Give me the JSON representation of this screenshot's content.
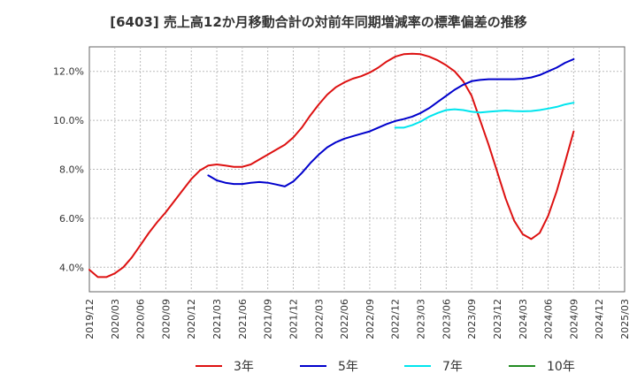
{
  "chart_data": {
    "type": "line",
    "title": "[6403]  売上高12か月移動合計の対前年同期増減率の標準偏差の推移",
    "xlabel": "",
    "ylabel": "",
    "ylim": [
      3.0,
      13.0
    ],
    "yticks": [
      4.0,
      6.0,
      8.0,
      10.0,
      12.0
    ],
    "ytick_labels": [
      "4.0%",
      "6.0%",
      "8.0%",
      "10.0%",
      "12.0%"
    ],
    "xticks": [
      "2019/12",
      "2020/03",
      "2020/06",
      "2020/09",
      "2020/12",
      "2021/03",
      "2021/06",
      "2021/09",
      "2021/12",
      "2022/03",
      "2022/06",
      "2022/09",
      "2022/12",
      "2023/03",
      "2023/06",
      "2023/09",
      "2023/12",
      "2024/03",
      "2024/06",
      "2024/09",
      "2024/12",
      "2025/03"
    ],
    "grid": true,
    "legend_position": "bottom",
    "series": [
      {
        "name": "3年",
        "color": "#dd1111",
        "points": [
          [
            "2019/12",
            3.9
          ],
          [
            "2020/01",
            3.6
          ],
          [
            "2020/02",
            3.6
          ],
          [
            "2020/03",
            3.75
          ],
          [
            "2020/04",
            4.0
          ],
          [
            "2020/05",
            4.4
          ],
          [
            "2020/06",
            4.9
          ],
          [
            "2020/07",
            5.4
          ],
          [
            "2020/08",
            5.85
          ],
          [
            "2020/09",
            6.25
          ],
          [
            "2020/10",
            6.7
          ],
          [
            "2020/11",
            7.15
          ],
          [
            "2020/12",
            7.6
          ],
          [
            "2021/01",
            7.95
          ],
          [
            "2021/02",
            8.15
          ],
          [
            "2021/03",
            8.2
          ],
          [
            "2021/04",
            8.15
          ],
          [
            "2021/05",
            8.1
          ],
          [
            "2021/06",
            8.1
          ],
          [
            "2021/07",
            8.2
          ],
          [
            "2021/08",
            8.4
          ],
          [
            "2021/09",
            8.6
          ],
          [
            "2021/10",
            8.8
          ],
          [
            "2021/11",
            9.0
          ],
          [
            "2021/12",
            9.3
          ],
          [
            "2022/01",
            9.7
          ],
          [
            "2022/02",
            10.2
          ],
          [
            "2022/03",
            10.65
          ],
          [
            "2022/04",
            11.05
          ],
          [
            "2022/05",
            11.35
          ],
          [
            "2022/06",
            11.55
          ],
          [
            "2022/07",
            11.7
          ],
          [
            "2022/08",
            11.8
          ],
          [
            "2022/09",
            11.95
          ],
          [
            "2022/10",
            12.15
          ],
          [
            "2022/11",
            12.4
          ],
          [
            "2022/12",
            12.6
          ],
          [
            "2023/01",
            12.7
          ],
          [
            "2023/02",
            12.72
          ],
          [
            "2023/03",
            12.7
          ],
          [
            "2023/04",
            12.6
          ],
          [
            "2023/05",
            12.45
          ],
          [
            "2023/06",
            12.25
          ],
          [
            "2023/07",
            12.0
          ],
          [
            "2023/08",
            11.6
          ],
          [
            "2023/09",
            11.0
          ],
          [
            "2023/10",
            10.0
          ],
          [
            "2023/11",
            9.0
          ],
          [
            "2023/12",
            7.9
          ],
          [
            "2024/01",
            6.8
          ],
          [
            "2024/02",
            5.9
          ],
          [
            "2024/03",
            5.35
          ],
          [
            "2024/04",
            5.15
          ],
          [
            "2024/05",
            5.4
          ],
          [
            "2024/06",
            6.1
          ],
          [
            "2024/07",
            7.1
          ],
          [
            "2024/08",
            8.3
          ],
          [
            "2024/09",
            9.55
          ]
        ]
      },
      {
        "name": "5年",
        "color": "#0000cc",
        "points": [
          [
            "2021/02",
            7.75
          ],
          [
            "2021/03",
            7.55
          ],
          [
            "2021/04",
            7.45
          ],
          [
            "2021/05",
            7.4
          ],
          [
            "2021/06",
            7.4
          ],
          [
            "2021/07",
            7.45
          ],
          [
            "2021/08",
            7.48
          ],
          [
            "2021/09",
            7.45
          ],
          [
            "2021/10",
            7.38
          ],
          [
            "2021/11",
            7.3
          ],
          [
            "2021/12",
            7.5
          ],
          [
            "2022/01",
            7.85
          ],
          [
            "2022/02",
            8.25
          ],
          [
            "2022/03",
            8.6
          ],
          [
            "2022/04",
            8.9
          ],
          [
            "2022/05",
            9.1
          ],
          [
            "2022/06",
            9.25
          ],
          [
            "2022/07",
            9.35
          ],
          [
            "2022/08",
            9.45
          ],
          [
            "2022/09",
            9.55
          ],
          [
            "2022/10",
            9.7
          ],
          [
            "2022/11",
            9.85
          ],
          [
            "2022/12",
            9.97
          ],
          [
            "2023/01",
            10.05
          ],
          [
            "2023/02",
            10.15
          ],
          [
            "2023/03",
            10.3
          ],
          [
            "2023/04",
            10.5
          ],
          [
            "2023/05",
            10.75
          ],
          [
            "2023/06",
            11.0
          ],
          [
            "2023/07",
            11.25
          ],
          [
            "2023/08",
            11.45
          ],
          [
            "2023/09",
            11.6
          ],
          [
            "2023/10",
            11.65
          ],
          [
            "2023/11",
            11.68
          ],
          [
            "2023/12",
            11.68
          ],
          [
            "2024/01",
            11.68
          ],
          [
            "2024/02",
            11.68
          ],
          [
            "2024/03",
            11.7
          ],
          [
            "2024/04",
            11.75
          ],
          [
            "2024/05",
            11.85
          ],
          [
            "2024/06",
            12.0
          ],
          [
            "2024/07",
            12.15
          ],
          [
            "2024/08",
            12.35
          ],
          [
            "2024/09",
            12.5
          ]
        ]
      },
      {
        "name": "7年",
        "color": "#00e5ee",
        "points": [
          [
            "2022/12",
            9.7
          ],
          [
            "2023/01",
            9.7
          ],
          [
            "2023/02",
            9.8
          ],
          [
            "2023/03",
            9.95
          ],
          [
            "2023/04",
            10.15
          ],
          [
            "2023/05",
            10.3
          ],
          [
            "2023/06",
            10.42
          ],
          [
            "2023/07",
            10.45
          ],
          [
            "2023/08",
            10.42
          ],
          [
            "2023/09",
            10.35
          ],
          [
            "2023/10",
            10.32
          ],
          [
            "2023/11",
            10.35
          ],
          [
            "2023/12",
            10.38
          ],
          [
            "2024/01",
            10.4
          ],
          [
            "2024/02",
            10.38
          ],
          [
            "2024/03",
            10.37
          ],
          [
            "2024/04",
            10.38
          ],
          [
            "2024/05",
            10.42
          ],
          [
            "2024/06",
            10.48
          ],
          [
            "2024/07",
            10.55
          ],
          [
            "2024/08",
            10.65
          ],
          [
            "2024/09",
            10.72
          ]
        ]
      },
      {
        "name": "10年",
        "color": "#228b22",
        "points": []
      }
    ]
  }
}
